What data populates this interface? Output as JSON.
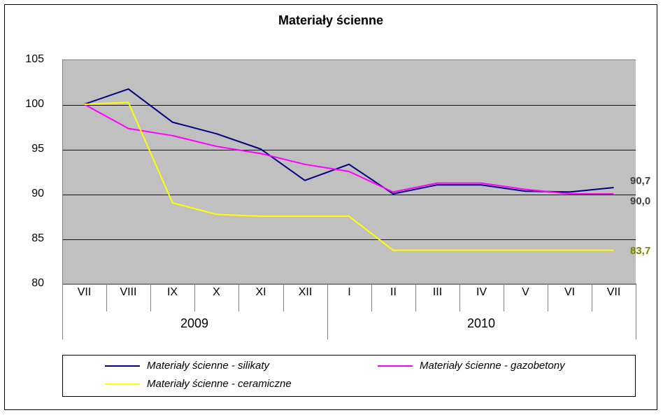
{
  "chart": {
    "type": "line",
    "title": "Materiały ścienne",
    "title_fontsize": 18,
    "background_color": "#ffffff",
    "plot_background_color": "#c0c0c0",
    "grid_color": "#000000",
    "axis_color": "#808080",
    "y": {
      "min": 80,
      "max": 105,
      "step": 5,
      "ticks": [
        80,
        85,
        90,
        95,
        100,
        105
      ],
      "label_fontsize": 16
    },
    "x": {
      "categories": [
        "VII",
        "VIII",
        "IX",
        "X",
        "XI",
        "XII",
        "I",
        "II",
        "III",
        "IV",
        "V",
        "VI",
        "VII"
      ],
      "year_groups": [
        {
          "label": "2009",
          "start": 0,
          "end": 5
        },
        {
          "label": "2010",
          "start": 6,
          "end": 12
        }
      ],
      "label_fontsize": 16
    },
    "series": [
      {
        "name": "Materiały ścienne - silikaty",
        "color": "#000080",
        "line_width": 2,
        "values": [
          100.0,
          101.7,
          98.0,
          96.7,
          95.0,
          91.5,
          93.3,
          90.0,
          91.0,
          91.0,
          90.3,
          90.2,
          90.7
        ],
        "end_label": "90,7",
        "end_label_color": "#404040"
      },
      {
        "name": "Materiały ścienne - gazobetony",
        "color": "#ff00ff",
        "line_width": 2,
        "values": [
          100.0,
          97.3,
          96.5,
          95.3,
          94.5,
          93.3,
          92.5,
          90.2,
          91.2,
          91.2,
          90.5,
          90.0,
          90.0
        ],
        "end_label": "90,0",
        "end_label_color": "#404040"
      },
      {
        "name": "Materiały ścienne - ceramiczne",
        "color": "#ffff00",
        "line_width": 2,
        "values": [
          100.0,
          100.2,
          89.0,
          87.7,
          87.5,
          87.5,
          87.5,
          83.7,
          83.7,
          83.7,
          83.7,
          83.7,
          83.7
        ],
        "end_label": "83,7",
        "end_label_color": "#808000"
      }
    ],
    "legend": {
      "border_color": "#000000",
      "font_style": "italic",
      "font_size": 15
    }
  }
}
